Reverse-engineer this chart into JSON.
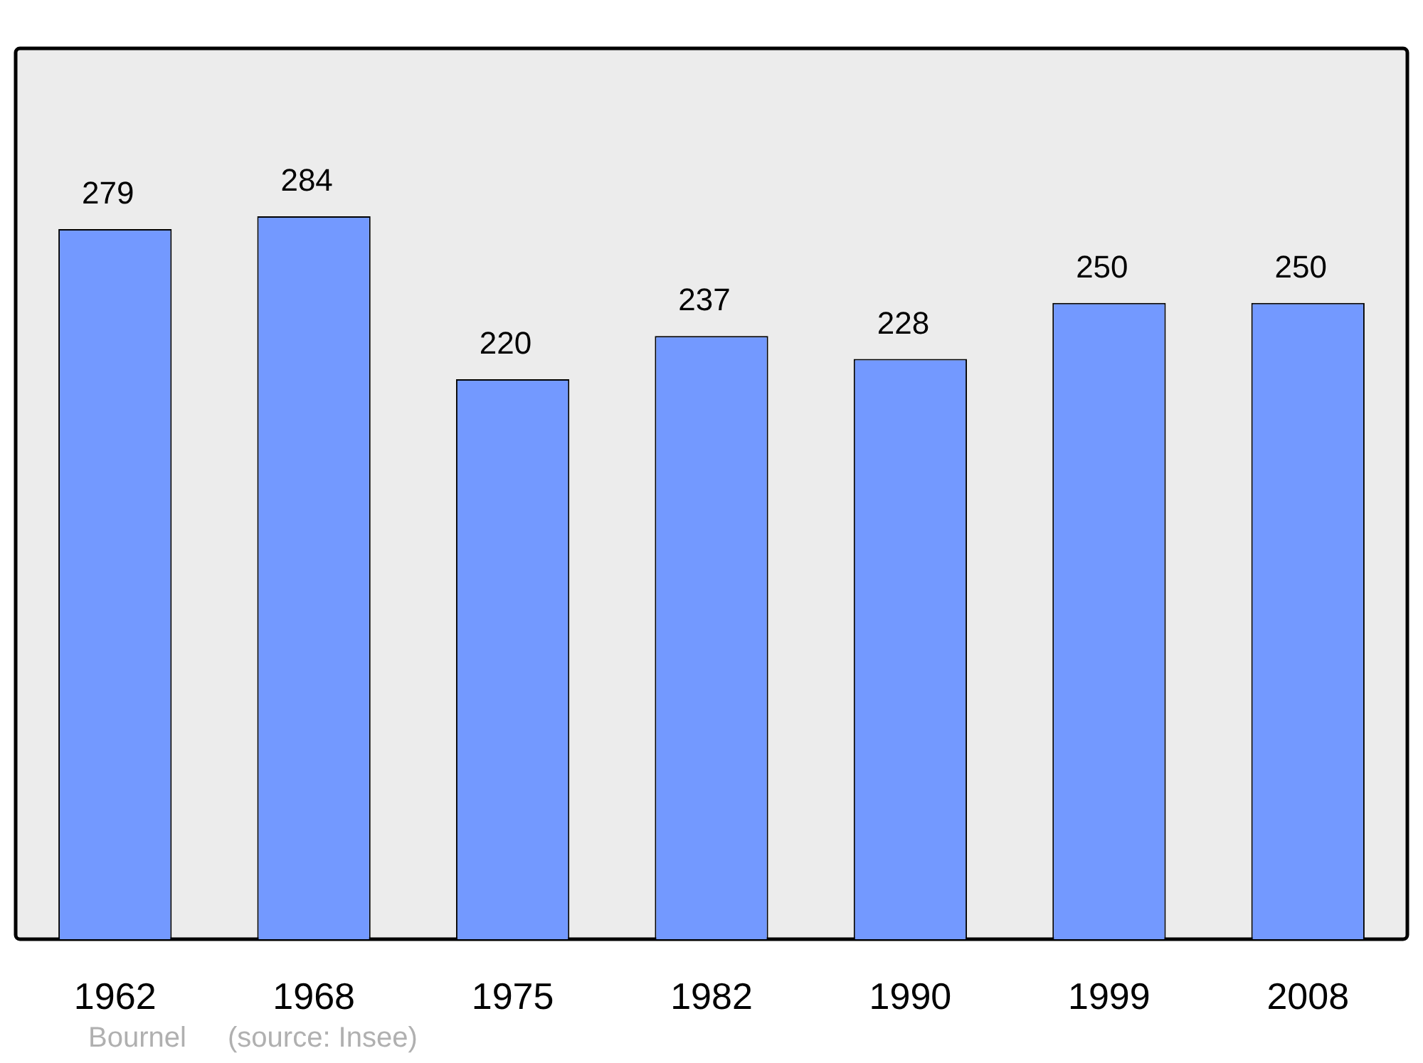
{
  "chart_data": {
    "type": "bar",
    "categories": [
      "1962",
      "1968",
      "1975",
      "1982",
      "1990",
      "1999",
      "2008"
    ],
    "values": [
      279,
      284,
      220,
      237,
      228,
      250,
      250
    ],
    "color": "#7399ff",
    "data_labels": true,
    "grid": false,
    "legend": false,
    "annotations": [
      "Bournel",
      "(source: Insee)"
    ]
  }
}
